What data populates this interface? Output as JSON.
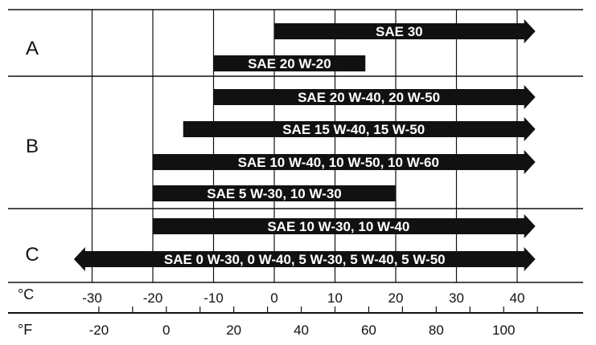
{
  "chart_data": {
    "type": "range-bar",
    "temperature_units": {
      "celsius": "°C",
      "fahrenheit": "°F"
    },
    "celsius_ticks": [
      -30,
      -20,
      -10,
      0,
      10,
      20,
      30,
      40
    ],
    "fahrenheit_ticks": [
      -20,
      0,
      20,
      40,
      60,
      80,
      100
    ],
    "groups": [
      {
        "label": "A",
        "bars": [
          {
            "label": "SAE 30",
            "min_c": 0,
            "max_c": 43,
            "arrow_right": true,
            "arrow_left": false
          },
          {
            "label": "SAE 20 W-20",
            "min_c": -10,
            "max_c": 15,
            "arrow_right": false,
            "arrow_left": false
          }
        ]
      },
      {
        "label": "B",
        "bars": [
          {
            "label": "SAE 20 W-40, 20 W-50",
            "min_c": -10,
            "max_c": 43,
            "arrow_right": true,
            "arrow_left": false
          },
          {
            "label": "SAE 15 W-40, 15 W-50",
            "min_c": -15,
            "max_c": 43,
            "arrow_right": true,
            "arrow_left": false
          },
          {
            "label": "SAE 10 W-40, 10 W-50, 10 W-60",
            "min_c": -20,
            "max_c": 43,
            "arrow_right": true,
            "arrow_left": false
          },
          {
            "label": "SAE 5 W-30, 10 W-30",
            "min_c": -20,
            "max_c": 20,
            "arrow_right": false,
            "arrow_left": false
          }
        ]
      },
      {
        "label": "C",
        "bars": [
          {
            "label": "SAE 10 W-30, 10 W-40",
            "min_c": -20,
            "max_c": 43,
            "arrow_right": true,
            "arrow_left": false
          },
          {
            "label": "SAE 0 W-30, 0 W-40, 5 W-30, 5 W-40, 5 W-50",
            "min_c": -33,
            "max_c": 43,
            "arrow_right": true,
            "arrow_left": true
          }
        ]
      }
    ],
    "colors": {
      "bar": "#111111",
      "grid": "#111111",
      "background": "#ffffff",
      "bar_text": "#ffffff"
    }
  }
}
